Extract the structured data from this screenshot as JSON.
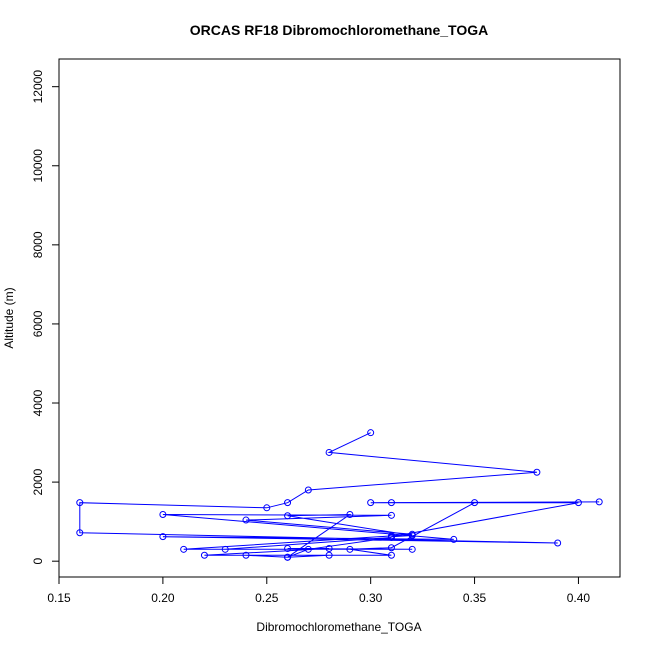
{
  "chart_data": {
    "type": "line",
    "title": "ORCAS RF18 Dibromochloromethane_TOGA",
    "xlabel": "Dibromochloromethane_TOGA",
    "ylabel": "Altitude (m)",
    "xlim": [
      0.15,
      0.42
    ],
    "ylim": [
      -400,
      12700
    ],
    "xticks": [
      0.15,
      0.2,
      0.25,
      0.3,
      0.35,
      0.4
    ],
    "xtick_labels": [
      "0.15",
      "0.20",
      "0.25",
      "0.30",
      "0.35",
      "0.40"
    ],
    "yticks": [
      0,
      2000,
      4000,
      6000,
      8000,
      10000,
      12000
    ],
    "ytick_labels": [
      "0",
      "2000",
      "4000",
      "6000",
      "8000",
      "10000",
      "12000"
    ],
    "grid": false,
    "series": [
      {
        "color": "#0000ff",
        "marker": "open-circle",
        "points": [
          [
            0.3,
            3250
          ],
          [
            0.28,
            2750
          ],
          [
            0.38,
            2250
          ],
          [
            0.27,
            1800
          ],
          [
            0.26,
            1480
          ],
          [
            0.25,
            1350
          ],
          [
            0.16,
            1480
          ],
          [
            0.16,
            720
          ],
          [
            0.39,
            460
          ],
          [
            0.2,
            620
          ],
          [
            0.34,
            550
          ],
          [
            0.2,
            1180
          ],
          [
            0.31,
            1160
          ],
          [
            0.24,
            1040
          ],
          [
            0.32,
            680
          ],
          [
            0.31,
            640
          ],
          [
            0.21,
            300
          ],
          [
            0.32,
            300
          ],
          [
            0.26,
            320
          ],
          [
            0.28,
            320
          ],
          [
            0.22,
            150
          ],
          [
            0.28,
            150
          ],
          [
            0.26,
            100
          ],
          [
            0.24,
            150
          ],
          [
            0.31,
            150
          ],
          [
            0.29,
            300
          ],
          [
            0.31,
            340
          ],
          [
            0.35,
            1480
          ],
          [
            0.3,
            1480
          ],
          [
            0.41,
            1500
          ],
          [
            0.31,
            1480
          ],
          [
            0.4,
            1480
          ],
          [
            0.31,
            620
          ],
          [
            0.32,
            650
          ],
          [
            0.26,
            1150
          ],
          [
            0.29,
            1180
          ],
          [
            0.26,
            100
          ],
          [
            0.27,
            300
          ],
          [
            0.31,
            600
          ],
          [
            0.23,
            300
          ]
        ]
      }
    ]
  }
}
